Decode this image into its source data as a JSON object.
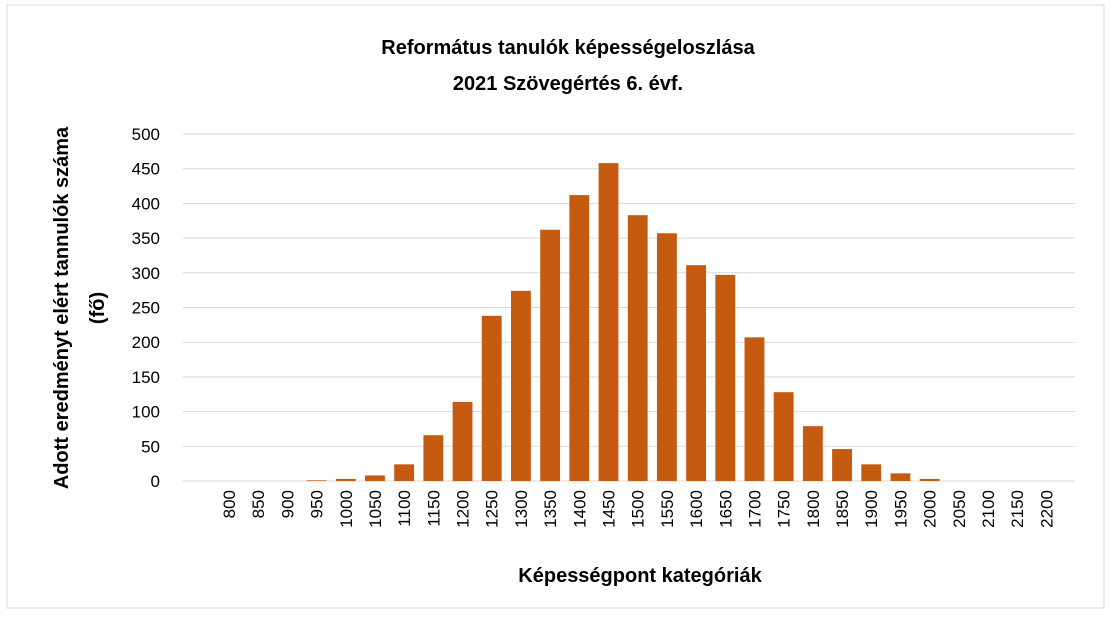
{
  "chart_data": {
    "type": "bar",
    "title": [
      "Református tanulók képességeloszlása",
      "2021 Szövegértés 6. évf."
    ],
    "x_label": "Képességpont kategóriák",
    "y_label": [
      "Adott eredményt elért tannulók száma",
      "(fő)"
    ],
    "categories": [
      "800",
      "850",
      "900",
      "950",
      "1000",
      "1050",
      "1100",
      "1150",
      "1200",
      "1250",
      "1300",
      "1350",
      "1400",
      "1450",
      "1500",
      "1550",
      "1600",
      "1650",
      "1700",
      "1750",
      "1800",
      "1850",
      "1900",
      "1950",
      "2000",
      "2050",
      "2100",
      "2150",
      "2200"
    ],
    "values": [
      0,
      0,
      0,
      1,
      3,
      8,
      24,
      66,
      114,
      238,
      274,
      362,
      412,
      458,
      383,
      357,
      311,
      297,
      207,
      128,
      79,
      46,
      24,
      11,
      3,
      0,
      0,
      0,
      0
    ],
    "color": "#c55a11",
    "ylim": [
      0,
      500
    ],
    "yticks": [
      0,
      50,
      100,
      150,
      200,
      250,
      300,
      350,
      400,
      450,
      500
    ],
    "grid": true
  }
}
